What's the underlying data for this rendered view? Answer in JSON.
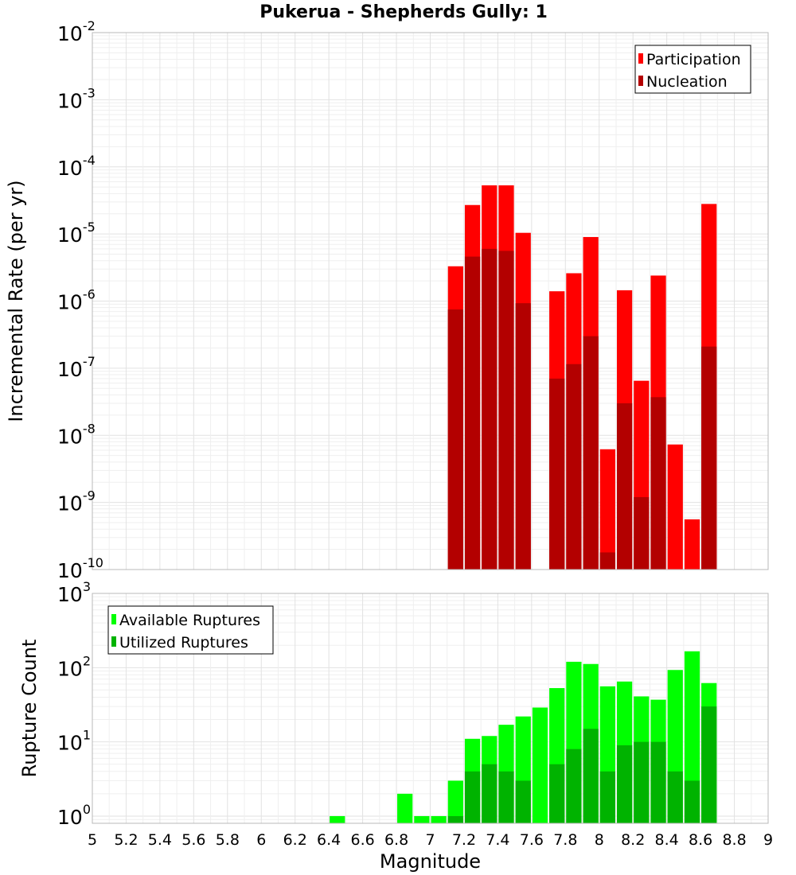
{
  "title": "Pukerua - Shepherds Gully: 1",
  "chart_data": [
    {
      "type": "bar",
      "scale": "log",
      "ylabel": "Incremental Rate (per yr)",
      "ylim": [
        1e-10,
        0.01
      ],
      "xlim": [
        5,
        9
      ],
      "legend": "top-right",
      "grid": true,
      "bar_width": 0.1,
      "series": [
        {
          "name": "Participation",
          "color": "#ff0000",
          "x": [
            7.15,
            7.25,
            7.35,
            7.45,
            7.55,
            7.75,
            7.85,
            7.95,
            8.05,
            8.15,
            8.25,
            8.35,
            8.45,
            8.55,
            8.65
          ],
          "values": [
            3.3e-06,
            2.7e-05,
            5.3e-05,
            5.3e-05,
            1.04e-05,
            1.4e-06,
            2.6e-06,
            9e-06,
            6.2e-09,
            1.45e-06,
            6.5e-08,
            2.4e-06,
            7.3e-09,
            5.6e-10,
            2.8e-05
          ]
        },
        {
          "name": "Nucleation",
          "color": "#b30000",
          "x": [
            7.15,
            7.25,
            7.35,
            7.45,
            7.55,
            7.75,
            7.85,
            7.95,
            8.05,
            8.15,
            8.25,
            8.35,
            8.65
          ],
          "values": [
            7.5e-07,
            4.6e-06,
            6e-06,
            5.6e-06,
            9.3e-07,
            7e-08,
            1.15e-07,
            3e-07,
            1.8e-10,
            3e-08,
            1.2e-09,
            3.7e-08,
            2.1e-07
          ]
        }
      ]
    },
    {
      "type": "bar",
      "scale": "log",
      "ylabel": "Rupture Count",
      "xlabel": "Magnitude",
      "ylim": [
        0.8,
        1000
      ],
      "xlim": [
        5,
        9
      ],
      "legend": "top-left",
      "grid": true,
      "bar_width": 0.1,
      "xticks": [
        "5",
        "5.2",
        "5.4",
        "5.6",
        "5.8",
        "6",
        "6.2",
        "6.4",
        "6.6",
        "6.8",
        "7",
        "7.2",
        "7.4",
        "7.6",
        "7.8",
        "8",
        "8.2",
        "8.4",
        "8.6",
        "8.8",
        "9"
      ],
      "series": [
        {
          "name": "Available Ruptures",
          "color": "#00ff00",
          "x": [
            6.45,
            6.85,
            6.95,
            7.05,
            7.15,
            7.25,
            7.35,
            7.45,
            7.55,
            7.65,
            7.75,
            7.85,
            7.95,
            8.05,
            8.15,
            8.25,
            8.35,
            8.45,
            8.55,
            8.65
          ],
          "values": [
            1,
            2,
            1,
            1,
            3,
            11,
            12,
            17,
            22,
            29,
            53,
            120,
            112,
            56,
            65,
            41,
            37,
            93,
            166,
            62
          ]
        },
        {
          "name": "Utilized Ruptures",
          "color": "#00b300",
          "x": [
            7.15,
            7.25,
            7.35,
            7.45,
            7.55,
            7.75,
            7.85,
            7.95,
            8.05,
            8.15,
            8.25,
            8.35,
            8.45,
            8.55,
            8.65
          ],
          "values": [
            1,
            4,
            5,
            4,
            3,
            5,
            8,
            15,
            4,
            9,
            10,
            10,
            4,
            3,
            30
          ]
        }
      ]
    }
  ]
}
